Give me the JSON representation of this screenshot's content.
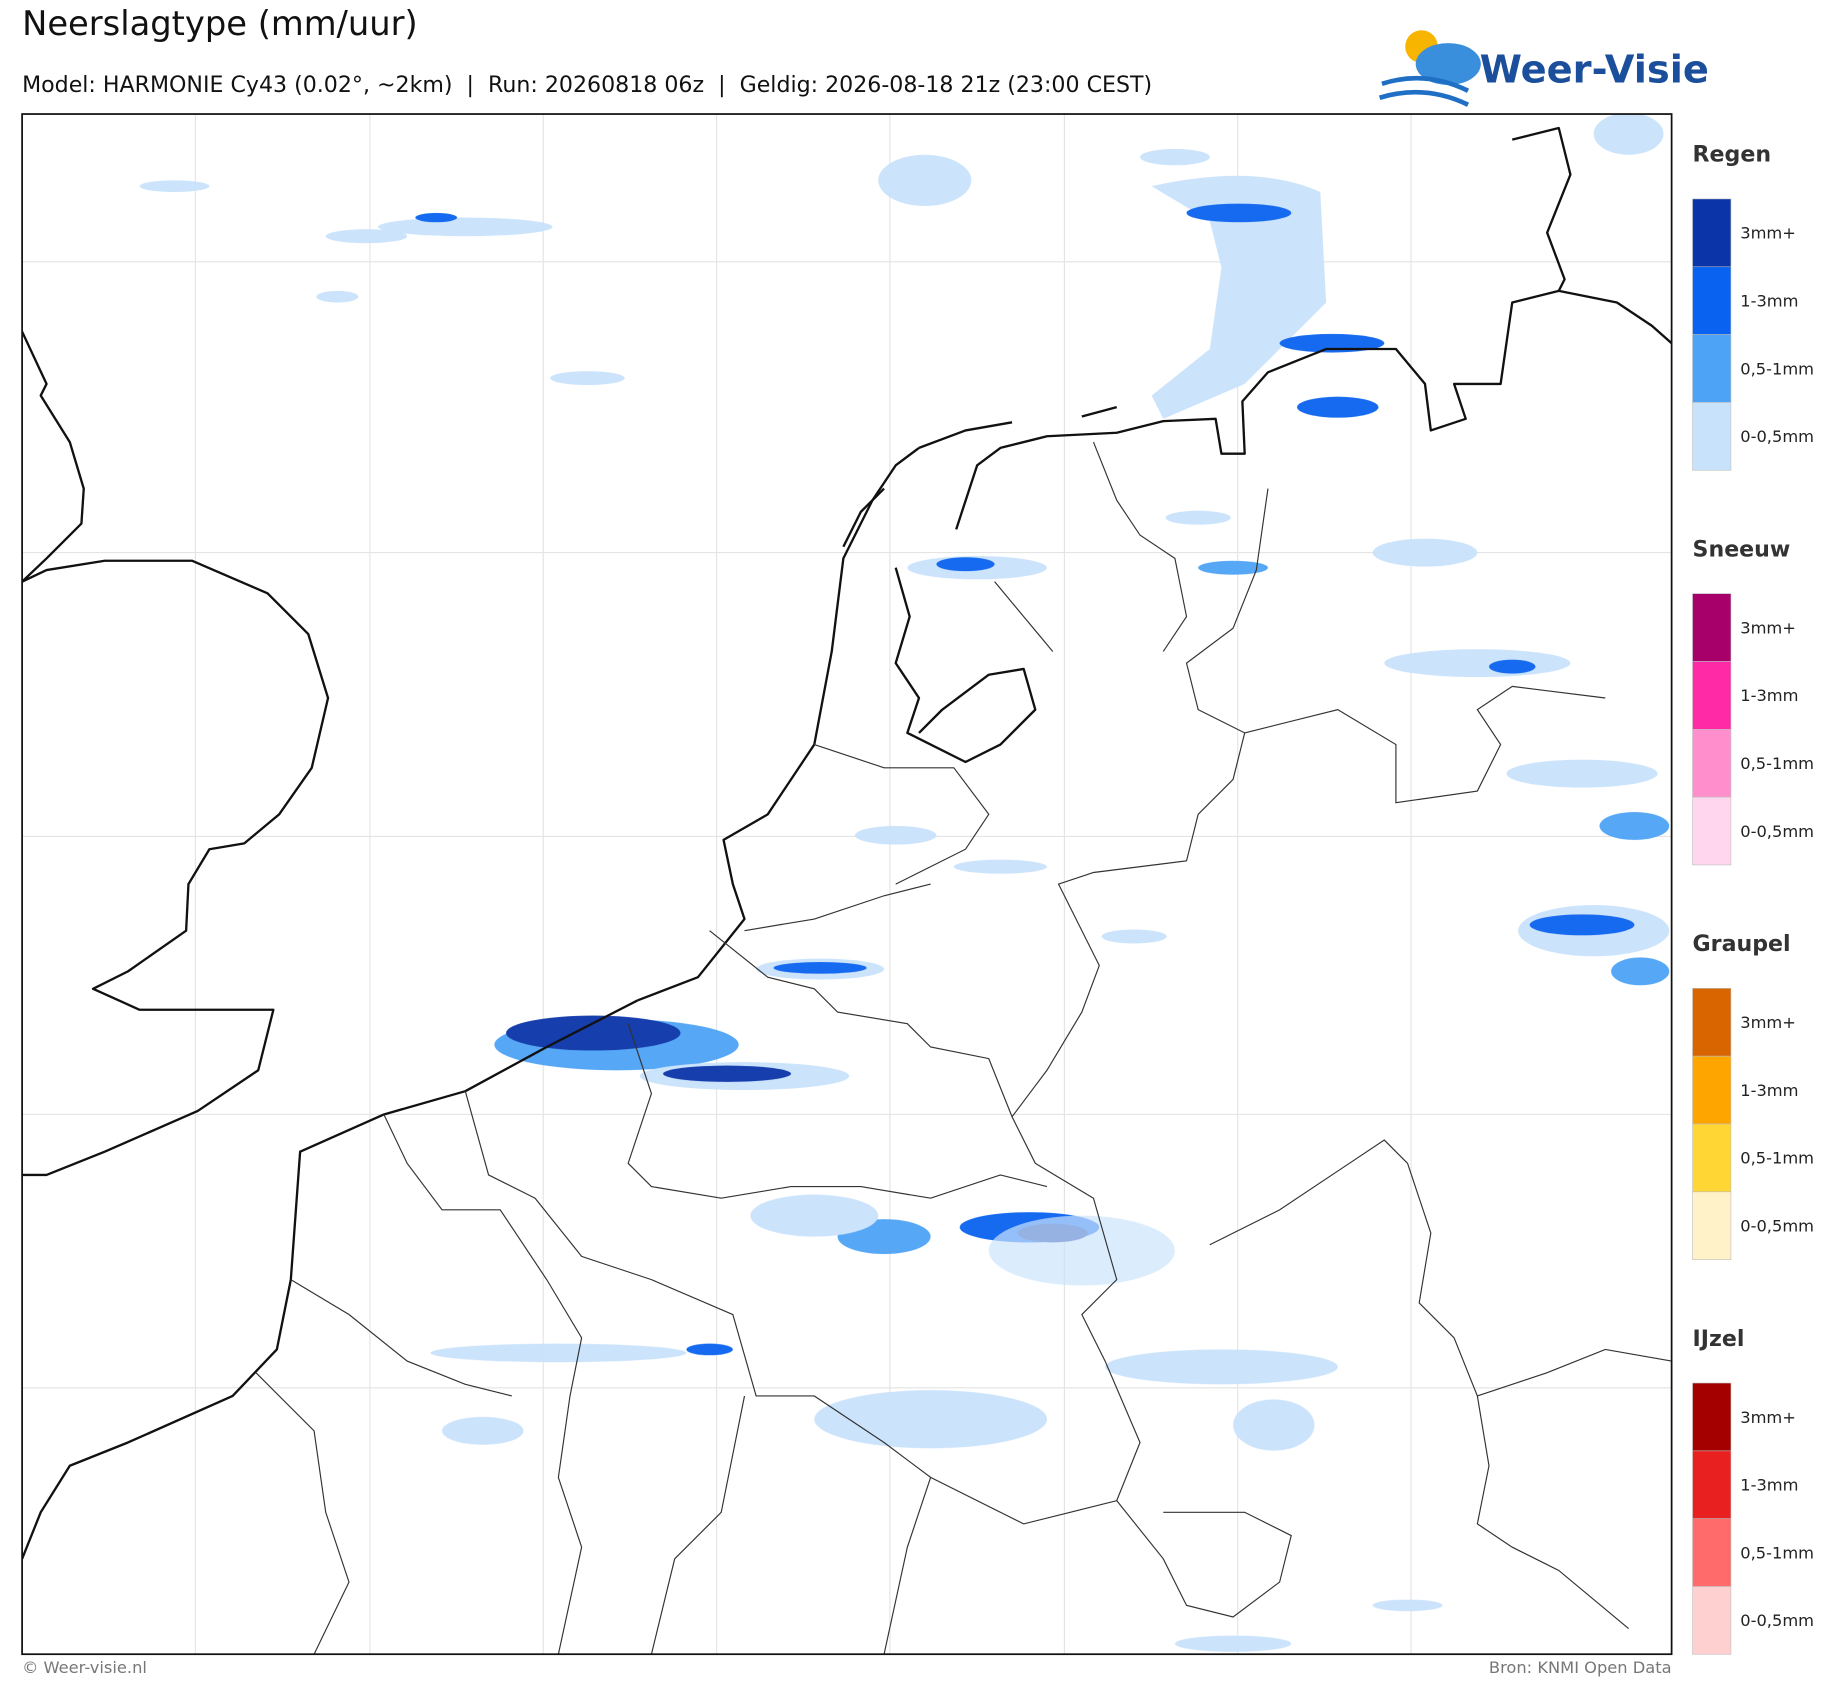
{
  "header": {
    "title": "Neerslagtype (mm/uur)",
    "subtitle": "Model: HARMONIE Cy43 (0.02°, ~2km)  |  Run: 20260818 06z  |  Geldig: 2026-08-18 21z (23:00 CEST)",
    "logo": "Weer-Visie"
  },
  "legend": [
    {
      "title": "Regen",
      "items": [
        {
          "label": "3mm+",
          "color": "#0a34a8"
        },
        {
          "label": "1-3mm",
          "color": "#0a62f0"
        },
        {
          "label": "0,5-1mm",
          "color": "#4da3f5"
        },
        {
          "label": "0-0,5mm",
          "color": "#c9e2fb"
        }
      ]
    },
    {
      "title": "Sneeuw",
      "items": [
        {
          "label": "3mm+",
          "color": "#a8006b"
        },
        {
          "label": "1-3mm",
          "color": "#ff2aa6"
        },
        {
          "label": "0,5-1mm",
          "color": "#ff8fcc"
        },
        {
          "label": "0-0,5mm",
          "color": "#ffd6ee"
        }
      ]
    },
    {
      "title": "Graupel",
      "items": [
        {
          "label": "3mm+",
          "color": "#d96500"
        },
        {
          "label": "1-3mm",
          "color": "#ffa500"
        },
        {
          "label": "0,5-1mm",
          "color": "#ffd633"
        },
        {
          "label": "0-0,5mm",
          "color": "#fff1c8"
        }
      ]
    },
    {
      "title": "IJzel",
      "items": [
        {
          "label": "3mm+",
          "color": "#a50000"
        },
        {
          "label": "1-3mm",
          "color": "#e82020"
        },
        {
          "label": "0,5-1mm",
          "color": "#ff6a6a"
        },
        {
          "label": "0-0,5mm",
          "color": "#ffd0d0"
        }
      ]
    }
  ],
  "footer": {
    "left": "© Weer-visie.nl",
    "right": "Bron: KNMI Open Data"
  }
}
